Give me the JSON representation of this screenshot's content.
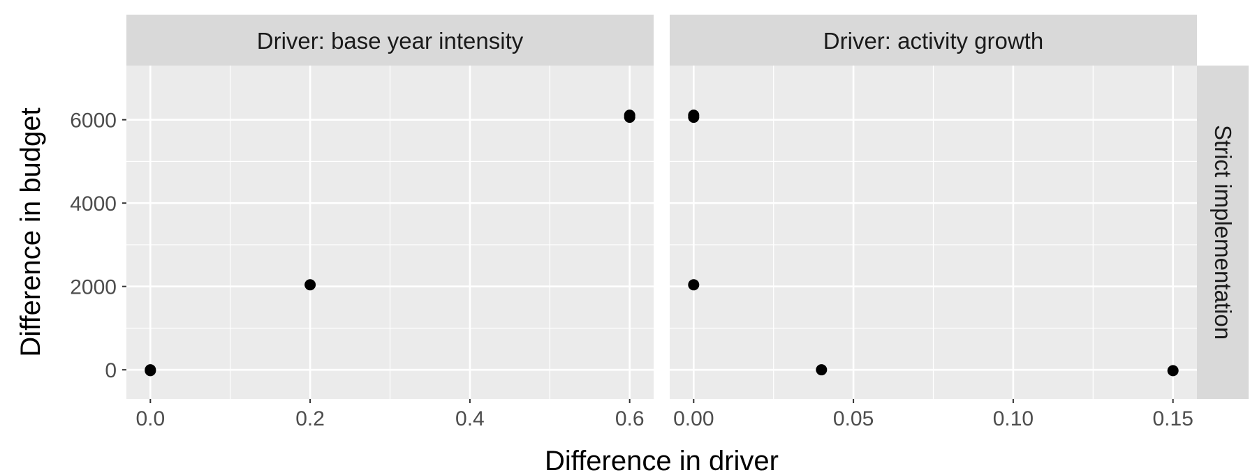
{
  "chart_data": {
    "type": "scatter",
    "xlabel": "Difference in driver",
    "ylabel": "Difference in budget",
    "row_strip": "Strict implementation",
    "y_ticks": [
      "0",
      "2000",
      "4000",
      "6000"
    ],
    "y_tick_values": [
      0,
      2000,
      4000,
      6000
    ],
    "ylim": [
      -700,
      7300
    ],
    "panels": [
      {
        "strip": "Driver: base year intensity",
        "x_ticks": [
          "0.0",
          "0.2",
          "0.4",
          "0.6"
        ],
        "x_tick_values": [
          0.0,
          0.2,
          0.4,
          0.6
        ],
        "x_minor_values": [
          0.1,
          0.3,
          0.5
        ],
        "xlim": [
          -0.03,
          0.63
        ],
        "points": [
          {
            "x": 0.0,
            "y": 0
          },
          {
            "x": 0.0,
            "y": -20
          },
          {
            "x": 0.2,
            "y": 2040
          },
          {
            "x": 0.6,
            "y": 6060
          },
          {
            "x": 0.6,
            "y": 6110
          }
        ]
      },
      {
        "strip": "Driver: activity growth",
        "x_ticks": [
          "0.00",
          "0.05",
          "0.10",
          "0.15"
        ],
        "x_tick_values": [
          0.0,
          0.05,
          0.1,
          0.15
        ],
        "x_minor_values": [
          0.025,
          0.075,
          0.125
        ],
        "xlim": [
          -0.0075,
          0.1575
        ],
        "points": [
          {
            "x": 0.0,
            "y": 6060
          },
          {
            "x": 0.0,
            "y": 6110
          },
          {
            "x": 0.0,
            "y": 2040
          },
          {
            "x": 0.04,
            "y": 0
          },
          {
            "x": 0.15,
            "y": -20
          }
        ]
      }
    ],
    "grid": true,
    "point_color": "#000000",
    "panel_background": "#ebebeb",
    "strip_background": "#d9d9d9",
    "grid_color": "#ffffff"
  }
}
